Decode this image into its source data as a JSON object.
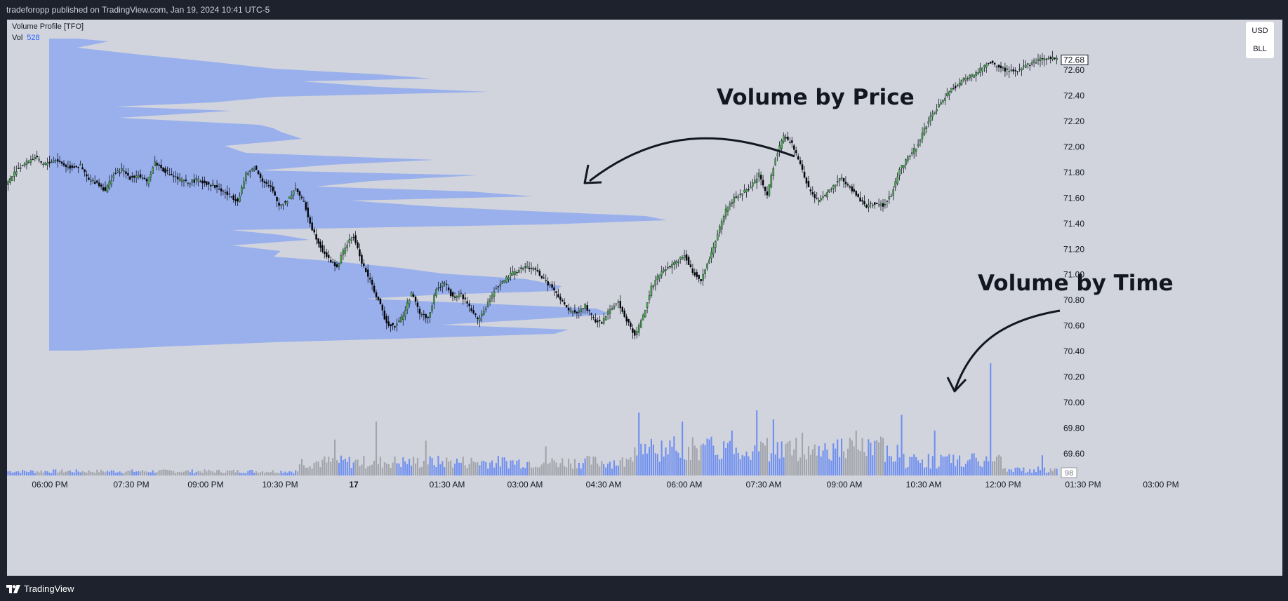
{
  "header": {
    "attribution": "tradeforopp published on TradingView.com, Jan 19, 2024 10:41 UTC-5"
  },
  "legend": {
    "indicator": "Volume Profile [TFO]",
    "vol_label": "Vol",
    "vol_value": "528"
  },
  "currency": {
    "line1": "USD",
    "line2": "BLL"
  },
  "annotations": {
    "price": "Volume by Price",
    "time": "Volume by Time"
  },
  "footer": {
    "brand": "TradingView"
  },
  "colors": {
    "background": "#d1d4dc",
    "frame": "#1e222d",
    "profile": "#8fa9ee",
    "candle_up": "#4caf50",
    "candle_down": "#000000",
    "volume_blue": "#6f8ff0",
    "volume_gray": "#a2a4ab",
    "vol_value": "#2962ff"
  },
  "chart_data": {
    "type": "candlestick",
    "price_axis": {
      "ticks": [
        72.6,
        72.4,
        72.2,
        72.0,
        71.8,
        71.6,
        71.4,
        71.2,
        71.0,
        70.8,
        70.6,
        70.4,
        70.2,
        70.0,
        69.8,
        69.6
      ],
      "tick_labels": [
        "72.60",
        "72.40",
        "72.20",
        "72.00",
        "71.80",
        "71.60",
        "71.40",
        "71.20",
        "71.00",
        "70.80",
        "70.60",
        "70.40",
        "70.20",
        "70.00",
        "69.80",
        "69.60"
      ],
      "last_price": "72.68",
      "volume_last": "98"
    },
    "time_axis": {
      "tick_labels": [
        "06:00 PM",
        "07:30 PM",
        "09:00 PM",
        "10:30 PM",
        "17",
        "01:30 AM",
        "03:00 AM",
        "04:30 AM",
        "06:00 AM",
        "07:30 AM",
        "09:00 AM",
        "10:30 AM",
        "12:00 PM",
        "01:30 PM",
        "03:00 PM"
      ]
    },
    "price_path": [
      [
        0,
        71.7
      ],
      [
        5,
        71.82
      ],
      [
        10,
        71.88
      ],
      [
        14,
        71.92
      ],
      [
        18,
        71.86
      ],
      [
        24,
        71.9
      ],
      [
        30,
        71.84
      ],
      [
        36,
        71.85
      ],
      [
        40,
        71.74
      ],
      [
        44,
        71.72
      ],
      [
        48,
        71.66
      ],
      [
        52,
        71.78
      ],
      [
        56,
        71.82
      ],
      [
        60,
        71.76
      ],
      [
        64,
        71.78
      ],
      [
        68,
        71.72
      ],
      [
        72,
        71.88
      ],
      [
        76,
        71.82
      ],
      [
        80,
        71.78
      ],
      [
        84,
        71.74
      ],
      [
        88,
        71.72
      ],
      [
        92,
        71.74
      ],
      [
        96,
        71.72
      ],
      [
        100,
        71.7
      ],
      [
        104,
        71.66
      ],
      [
        108,
        71.62
      ],
      [
        112,
        71.58
      ],
      [
        116,
        71.78
      ],
      [
        120,
        71.84
      ],
      [
        124,
        71.74
      ],
      [
        128,
        71.68
      ],
      [
        132,
        71.54
      ],
      [
        136,
        71.58
      ],
      [
        140,
        71.68
      ],
      [
        144,
        71.56
      ],
      [
        148,
        71.36
      ],
      [
        152,
        71.22
      ],
      [
        156,
        71.12
      ],
      [
        160,
        71.06
      ],
      [
        164,
        71.22
      ],
      [
        168,
        71.3
      ],
      [
        172,
        71.1
      ],
      [
        176,
        70.95
      ],
      [
        180,
        70.8
      ],
      [
        184,
        70.62
      ],
      [
        188,
        70.6
      ],
      [
        192,
        70.68
      ],
      [
        196,
        70.86
      ],
      [
        200,
        70.7
      ],
      [
        204,
        70.66
      ],
      [
        208,
        70.88
      ],
      [
        212,
        70.94
      ],
      [
        216,
        70.82
      ],
      [
        220,
        70.85
      ],
      [
        224,
        70.75
      ],
      [
        228,
        70.65
      ],
      [
        232,
        70.74
      ],
      [
        236,
        70.88
      ],
      [
        240,
        70.94
      ],
      [
        244,
        71.0
      ],
      [
        248,
        71.04
      ],
      [
        252,
        71.06
      ],
      [
        256,
        71.04
      ],
      [
        260,
        70.96
      ],
      [
        264,
        70.9
      ],
      [
        268,
        70.8
      ],
      [
        272,
        70.72
      ],
      [
        276,
        70.7
      ],
      [
        280,
        70.76
      ],
      [
        284,
        70.65
      ],
      [
        288,
        70.62
      ],
      [
        292,
        70.74
      ],
      [
        296,
        70.78
      ],
      [
        300,
        70.65
      ],
      [
        304,
        70.52
      ],
      [
        308,
        70.68
      ],
      [
        312,
        70.9
      ],
      [
        316,
        71.0
      ],
      [
        320,
        71.06
      ],
      [
        324,
        71.1
      ],
      [
        328,
        71.16
      ],
      [
        332,
        71.02
      ],
      [
        336,
        70.96
      ],
      [
        340,
        71.12
      ],
      [
        344,
        71.32
      ],
      [
        348,
        71.5
      ],
      [
        352,
        71.6
      ],
      [
        356,
        71.64
      ],
      [
        360,
        71.68
      ],
      [
        364,
        71.78
      ],
      [
        368,
        71.62
      ],
      [
        372,
        71.92
      ],
      [
        376,
        72.08
      ],
      [
        380,
        72.02
      ],
      [
        384,
        71.86
      ],
      [
        388,
        71.68
      ],
      [
        392,
        71.58
      ],
      [
        396,
        71.62
      ],
      [
        400,
        71.7
      ],
      [
        404,
        71.76
      ],
      [
        408,
        71.68
      ],
      [
        412,
        71.6
      ],
      [
        416,
        71.54
      ],
      [
        420,
        71.56
      ],
      [
        424,
        71.54
      ],
      [
        428,
        71.62
      ],
      [
        432,
        71.82
      ],
      [
        436,
        71.92
      ],
      [
        440,
        72.0
      ],
      [
        444,
        72.14
      ],
      [
        448,
        72.26
      ],
      [
        452,
        72.34
      ],
      [
        456,
        72.44
      ],
      [
        460,
        72.48
      ],
      [
        464,
        72.54
      ],
      [
        468,
        72.56
      ],
      [
        472,
        72.62
      ],
      [
        476,
        72.66
      ],
      [
        480,
        72.62
      ],
      [
        484,
        72.6
      ],
      [
        488,
        72.6
      ],
      [
        492,
        72.62
      ],
      [
        496,
        72.66
      ],
      [
        500,
        72.68
      ],
      [
        504,
        72.7
      ],
      [
        507,
        72.68
      ]
    ],
    "volume_spikes": [
      [
        158,
        320
      ],
      [
        178,
        480
      ],
      [
        202,
        310
      ],
      [
        260,
        260
      ],
      [
        305,
        560
      ],
      [
        326,
        480
      ],
      [
        350,
        400
      ],
      [
        362,
        580
      ],
      [
        370,
        500
      ],
      [
        384,
        380
      ],
      [
        410,
        400
      ],
      [
        432,
        540
      ],
      [
        448,
        400
      ],
      [
        475,
        1000
      ],
      [
        500,
        180
      ]
    ]
  }
}
